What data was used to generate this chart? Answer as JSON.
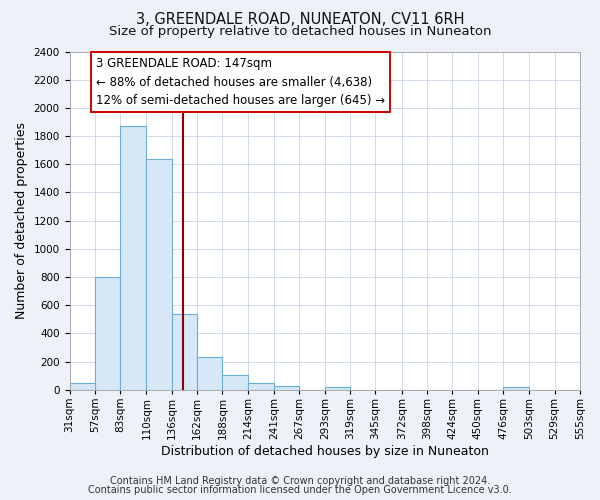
{
  "title": "3, GREENDALE ROAD, NUNEATON, CV11 6RH",
  "subtitle": "Size of property relative to detached houses in Nuneaton",
  "xlabel": "Distribution of detached houses by size in Nuneaton",
  "ylabel": "Number of detached properties",
  "bin_edges": [
    31,
    57,
    83,
    110,
    136,
    162,
    188,
    214,
    241,
    267,
    293,
    319,
    345,
    372,
    398,
    424,
    450,
    476,
    503,
    529,
    555
  ],
  "bar_heights": [
    50,
    800,
    1870,
    1640,
    540,
    235,
    108,
    50,
    30,
    0,
    20,
    0,
    0,
    0,
    0,
    0,
    0,
    20,
    0,
    0
  ],
  "bar_facecolor": "#d6e8f7",
  "bar_edgecolor": "#6aaed6",
  "tick_labels": [
    "31sqm",
    "57sqm",
    "83sqm",
    "110sqm",
    "136sqm",
    "162sqm",
    "188sqm",
    "214sqm",
    "241sqm",
    "267sqm",
    "293sqm",
    "319sqm",
    "345sqm",
    "372sqm",
    "398sqm",
    "424sqm",
    "450sqm",
    "476sqm",
    "503sqm",
    "529sqm",
    "555sqm"
  ],
  "ylim": [
    0,
    2400
  ],
  "yticks": [
    0,
    200,
    400,
    600,
    800,
    1000,
    1200,
    1400,
    1600,
    1800,
    2000,
    2200,
    2400
  ],
  "vline_x": 147,
  "vline_color": "#8b0000",
  "annotation_title": "3 GREENDALE ROAD: 147sqm",
  "annotation_line1": "← 88% of detached houses are smaller (4,638)",
  "annotation_line2": "12% of semi-detached houses are larger (645) →",
  "footer1": "Contains HM Land Registry data © Crown copyright and database right 2024.",
  "footer2": "Contains public sector information licensed under the Open Government Licence v3.0.",
  "fig_background": "#eef2f8",
  "plot_background": "#ffffff",
  "grid_color": "#c8d4e8",
  "title_fontsize": 10.5,
  "subtitle_fontsize": 9.5,
  "axis_label_fontsize": 9,
  "tick_fontsize": 7.5,
  "footer_fontsize": 7,
  "annot_fontsize": 8.5
}
